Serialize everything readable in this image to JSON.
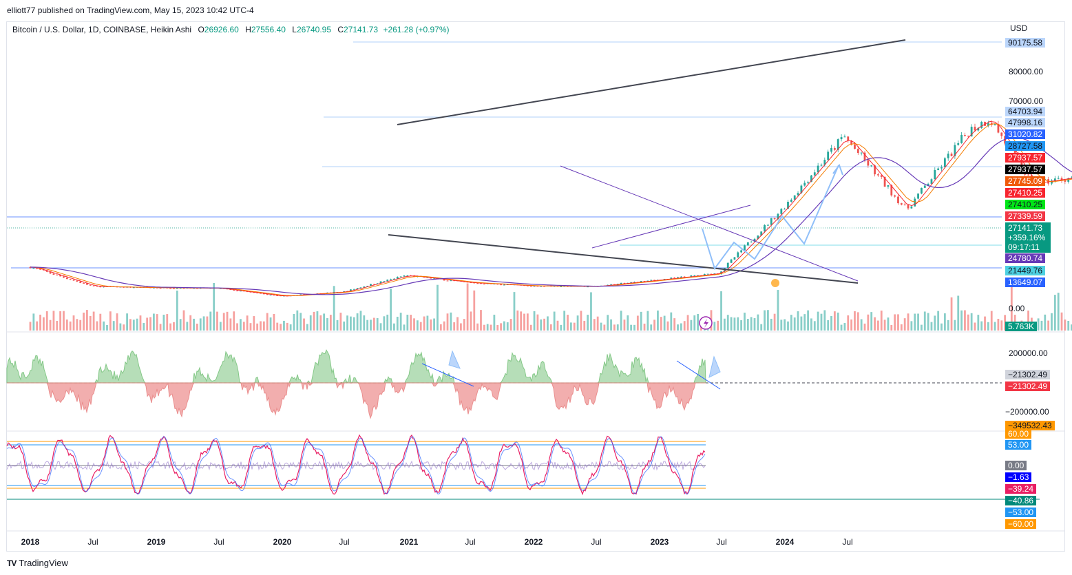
{
  "publisher": "elliott77 published on TradingView.com, May 15, 2023 10:42 UTC-4",
  "legend": {
    "symbol": "Bitcoin / U.S. Dollar, 1D, COINBASE, Heikin Ashi",
    "o_key": "O",
    "o_val": "26926.60",
    "h_key": "H",
    "h_val": "27556.40",
    "l_key": "L",
    "l_val": "26740.95",
    "c_key": "C",
    "c_val": "27141.73",
    "change": "+261.28 (+0.97%)"
  },
  "currency": "USD",
  "price_axis": {
    "ticks": [
      "80000.00",
      "70000.00",
      "0.00"
    ],
    "osc_ticks": [
      "200000.00",
      "−200000.00"
    ]
  },
  "last_price": {
    "price": "27141.73",
    "change": "+359.16%",
    "countdown": "09:17:11"
  },
  "price_labels": [
    {
      "text": "90175.58",
      "bg": "#bbd6fb",
      "fg": "#131722"
    },
    {
      "text": "64703.94",
      "bg": "#bbd6fb",
      "fg": "#131722"
    },
    {
      "text": "47998.16",
      "bg": "#bbd6fb",
      "fg": "#131722"
    },
    {
      "text": "31020.82",
      "bg": "#2962ff",
      "fg": "#ffffff"
    },
    {
      "text": "28727.58",
      "bg": "#2196f3",
      "fg": "#131722"
    },
    {
      "text": "27937.57",
      "bg": "#f7252f",
      "fg": "#ffffff"
    },
    {
      "text": "27937.57",
      "bg": "#000000",
      "fg": "#ffffff"
    },
    {
      "text": "27745.09",
      "bg": "#f05a0a",
      "fg": "#ffffff"
    },
    {
      "text": "27410.25",
      "bg": "#f7252f",
      "fg": "#ffffff"
    },
    {
      "text": "27410.25",
      "bg": "#00e617",
      "fg": "#131722"
    },
    {
      "text": "27339.59",
      "bg": "#f23645",
      "fg": "#ffffff"
    },
    {
      "text": "24780.74",
      "bg": "#673ab7",
      "fg": "#ffffff"
    },
    {
      "text": "21449.76",
      "bg": "#4dd0e1",
      "fg": "#131722"
    },
    {
      "text": "13649.07",
      "bg": "#2962ff",
      "fg": "#ffffff"
    },
    {
      "text": "5.763K",
      "bg": "#089981",
      "fg": "#ffffff"
    },
    {
      "text": "−21302.49",
      "bg": "#d1d4dc",
      "fg": "#131722"
    },
    {
      "text": "−21302.49",
      "bg": "#f23645",
      "fg": "#ffffff"
    },
    {
      "text": "−349532.43",
      "bg": "#ff9800",
      "fg": "#131722"
    },
    {
      "text": "60.00",
      "bg": "#ff9800",
      "fg": "#ffffff"
    },
    {
      "text": "53.00",
      "bg": "#2196f3",
      "fg": "#ffffff"
    },
    {
      "text": "0.00",
      "bg": "#787b86",
      "fg": "#ffffff"
    },
    {
      "text": "−1.63",
      "bg": "#0000ff",
      "fg": "#ffffff"
    },
    {
      "text": "−39.24",
      "bg": "#e91e63",
      "fg": "#ffffff"
    },
    {
      "text": "−40.86",
      "bg": "#00897b",
      "fg": "#ffffff"
    },
    {
      "text": "−53.00",
      "bg": "#2196f3",
      "fg": "#ffffff"
    },
    {
      "text": "−60.00",
      "bg": "#ff9800",
      "fg": "#ffffff"
    }
  ],
  "time_axis": [
    {
      "label": "2018",
      "bold": true
    },
    {
      "label": "Jul",
      "bold": false
    },
    {
      "label": "2019",
      "bold": true
    },
    {
      "label": "Jul",
      "bold": false
    },
    {
      "label": "2020",
      "bold": true
    },
    {
      "label": "Jul",
      "bold": false
    },
    {
      "label": "2021",
      "bold": true
    },
    {
      "label": "Jul",
      "bold": false
    },
    {
      "label": "2022",
      "bold": true
    },
    {
      "label": "Jul",
      "bold": false
    },
    {
      "label": "2023",
      "bold": true
    },
    {
      "label": "Jul",
      "bold": false
    },
    {
      "label": "2024",
      "bold": true
    },
    {
      "label": "Jul",
      "bold": false
    }
  ],
  "branding": "TradingView",
  "logo_mark": "TV",
  "chart_data": {
    "type": "line",
    "title": "Bitcoin / U.S. Dollar, 1D, COINBASE, Heikin Ashi",
    "ylabel": "USD",
    "x": [
      "2018-01",
      "2018-04",
      "2018-07",
      "2018-10",
      "2019-01",
      "2019-04",
      "2019-07",
      "2019-10",
      "2020-01",
      "2020-04",
      "2020-07",
      "2020-10",
      "2021-01",
      "2021-04",
      "2021-07",
      "2021-10",
      "2021-11",
      "2022-01",
      "2022-04",
      "2022-07",
      "2022-10",
      "2023-01",
      "2023-04",
      "2023-05"
    ],
    "series": [
      {
        "name": "BTCUSD",
        "values": [
          13600,
          7000,
          6600,
          6400,
          3700,
          5200,
          10800,
          8300,
          7200,
          7000,
          9200,
          11500,
          33000,
          58000,
          33000,
          60000,
          64000,
          42000,
          45000,
          20000,
          19500,
          16500,
          28500,
          27141.73
        ]
      }
    ],
    "ohlc_last": {
      "open": 26926.6,
      "high": 27556.4,
      "low": 26740.95,
      "close": 27141.73
    },
    "horizontal_levels": [
      90175.58,
      64703.94,
      47998.16,
      31020.82,
      28727.58,
      27937.57,
      27745.09,
      27410.25,
      27339.59,
      24780.74,
      21449.76,
      13649.07
    ],
    "y_ticks": [
      80000,
      70000,
      0
    ],
    "oscillator_1": {
      "last": -21302.49,
      "low_marker": -349532.43,
      "ticks": [
        200000,
        -200000
      ]
    },
    "oscillator_2": {
      "levels": [
        60,
        53,
        0,
        -53,
        -60
      ],
      "values": [
        -1.63,
        -39.24,
        -40.86
      ]
    },
    "volume_last": "5.763K",
    "grid": false
  }
}
